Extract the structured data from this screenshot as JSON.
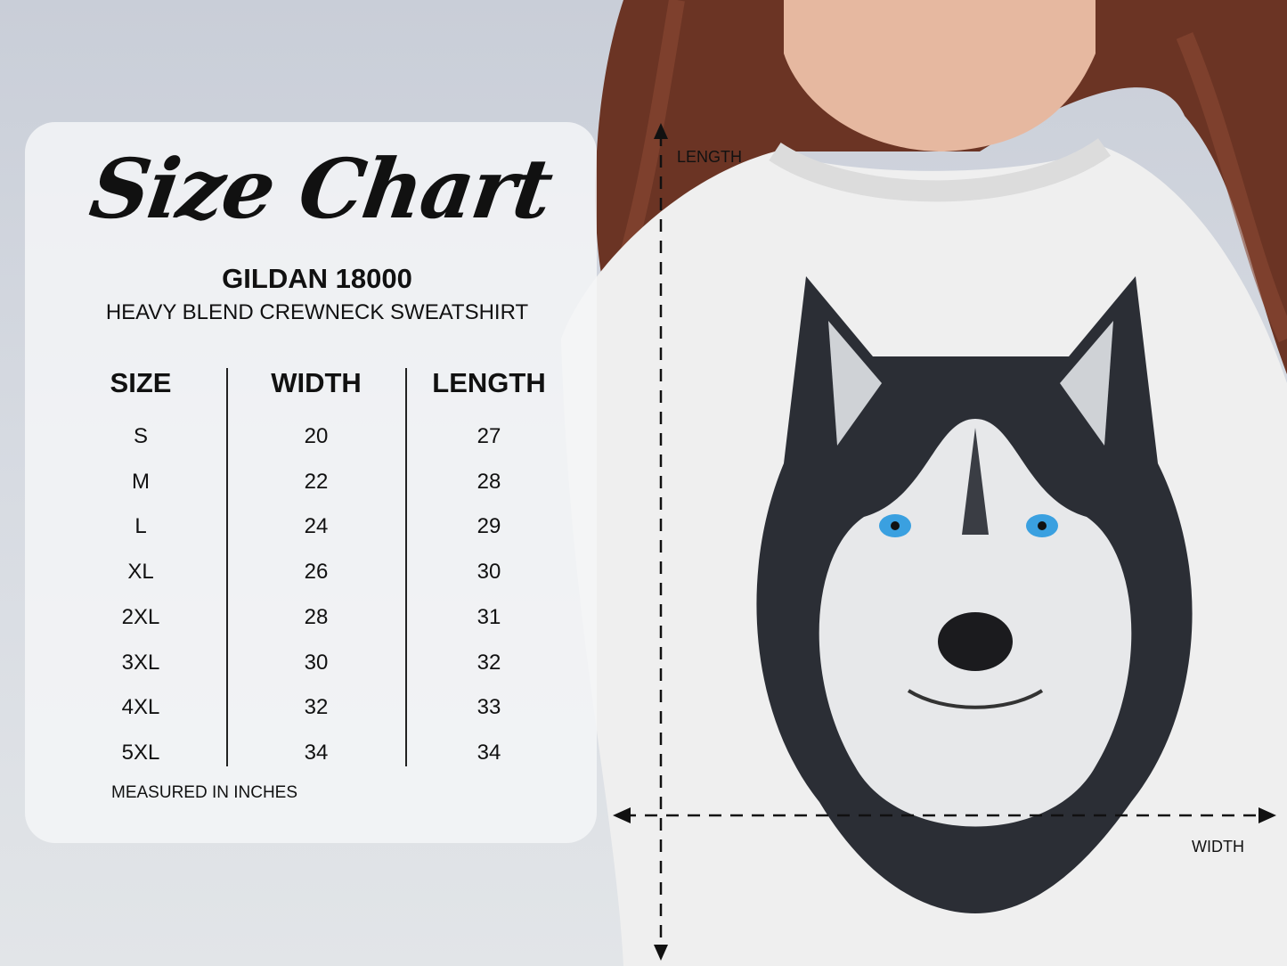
{
  "chart": {
    "title": "Size Chart",
    "model": "GILDAN 18000",
    "description": "HEAVY BLEND CREWNECK SWEATSHIRT",
    "columns": [
      "SIZE",
      "WIDTH",
      "LENGTH"
    ],
    "rows": [
      {
        "size": "S",
        "width": "20",
        "length": "27"
      },
      {
        "size": "M",
        "width": "22",
        "length": "28"
      },
      {
        "size": "L",
        "width": "24",
        "length": "29"
      },
      {
        "size": "XL",
        "width": "26",
        "length": "30"
      },
      {
        "size": "2XL",
        "width": "28",
        "length": "31"
      },
      {
        "size": "3XL",
        "width": "30",
        "length": "32"
      },
      {
        "size": "4XL",
        "width": "32",
        "length": "33"
      },
      {
        "size": "5XL",
        "width": "34",
        "length": "34"
      }
    ],
    "note": "MEASURED IN INCHES"
  },
  "measure": {
    "length_label": "LENGTH",
    "width_label": "WIDTH"
  },
  "colors": {
    "hair": "#6b3424",
    "shirt": "#f1f1f1",
    "eyes": "#3aa0e0",
    "text": "#111111"
  }
}
